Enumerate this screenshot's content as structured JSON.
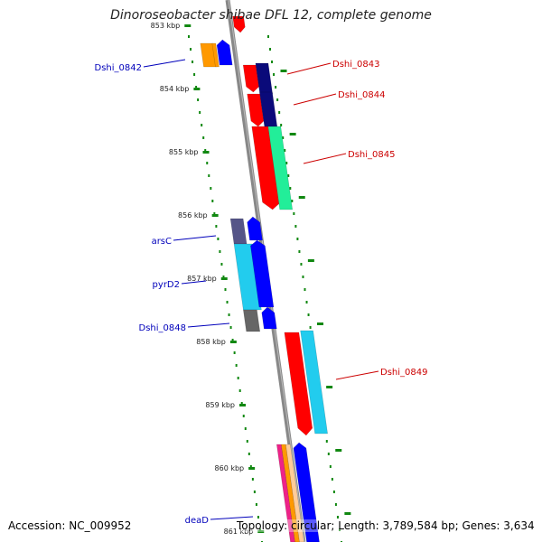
{
  "title": "Dinoroseobacter shibae DFL 12, complete genome",
  "footer": {
    "accession": "Accession: NC_009952",
    "summary": "Topology: circular; Length: 3,789,584 bp; Genes: 3,634"
  },
  "scale_labels": [
    "853 kbp",
    "854 kbp",
    "855 kbp",
    "856 kbp",
    "857 kbp",
    "858 kbp",
    "859 kbp",
    "860 kbp",
    "861 kbp"
  ],
  "colors": {
    "axis": "#888888",
    "tick": "#118811",
    "forward_label": "#cc0000",
    "reverse_label": "#0000bb",
    "red": "#ff0000",
    "navy": "#0a0a7a",
    "blue": "#0000ff",
    "mint": "#22ee99",
    "cyan": "#22ccee",
    "orange": "#ff9900",
    "slate": "#555588",
    "gray": "#666666"
  },
  "genes": [
    {
      "id": "Dshi_0842",
      "strand": "reverse"
    },
    {
      "id": "Dshi_0843",
      "strand": "forward"
    },
    {
      "id": "Dshi_0844",
      "strand": "forward"
    },
    {
      "id": "Dshi_0845",
      "strand": "forward"
    },
    {
      "id": "arsC",
      "strand": "reverse"
    },
    {
      "id": "pyrD2",
      "strand": "reverse"
    },
    {
      "id": "Dshi_0848",
      "strand": "reverse"
    },
    {
      "id": "Dshi_0849",
      "strand": "forward"
    },
    {
      "id": "deaD",
      "strand": "reverse"
    }
  ]
}
